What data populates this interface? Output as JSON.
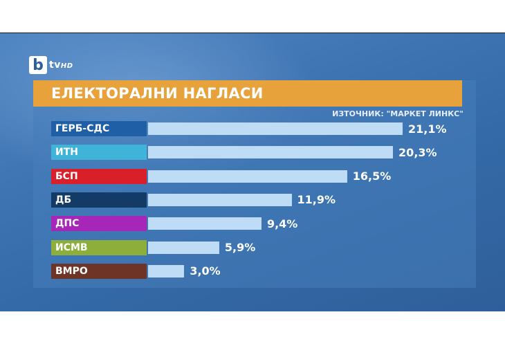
{
  "logo": {
    "letter": "b",
    "text": "tv",
    "hd": "HD"
  },
  "title": "ЕЛЕКТОРАЛНИ НАГЛАСИ",
  "source": "ИЗТОЧНИК: \"МАРКЕТ ЛИНКС\"",
  "chart_data": {
    "type": "bar",
    "orientation": "horizontal",
    "title": "ЕЛЕКТОРАЛНИ НАГЛАСИ",
    "categories": [
      "ГЕРБ-СДС",
      "ИТН",
      "БСП",
      "ДБ",
      "ДПС",
      "ИСМВ",
      "ВМРО"
    ],
    "values": [
      21.1,
      20.3,
      16.5,
      11.9,
      9.4,
      5.9,
      3.0
    ],
    "value_labels": [
      "21,1%",
      "20,3%",
      "16,5%",
      "11,9%",
      "9,4%",
      "5,9%",
      "3,0%"
    ],
    "category_colors": [
      "#1f5fa5",
      "#3fb4d8",
      "#d81f2a",
      "#133b66",
      "#a626b8",
      "#8dae3a",
      "#6e3426"
    ],
    "bar_color": "#bfdcf7",
    "xlim": [
      0,
      21.1
    ]
  }
}
